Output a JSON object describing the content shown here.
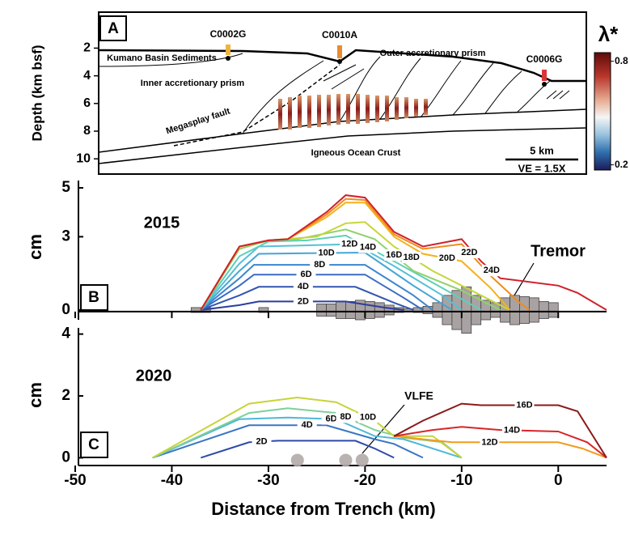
{
  "chart_data": [
    {
      "type": "section",
      "panel": "A",
      "ylabel": "Depth (km bsf)",
      "ylim": [
        11.1,
        -0.6
      ],
      "yticks": [
        2,
        4,
        6,
        8,
        10
      ],
      "labels": [
        "Kumano Basin Sediments",
        "Inner accretionary prism",
        "Outer accretionary prism",
        "Megasplay fault",
        "Igneous Ocean Crust"
      ],
      "sites": [
        {
          "name": "C0002G",
          "color": "#f0b43c"
        },
        {
          "name": "C0010A",
          "color": "#e98b2f"
        },
        {
          "name": "C0006G",
          "color": "#d9363a"
        }
      ],
      "scale_bar": "5 km",
      "ve": "VE = 1.5X",
      "colorbar": {
        "title": "λ*",
        "clim": [
          0.17,
          0.85
        ],
        "ticks": [
          0.2,
          0.8
        ]
      }
    },
    {
      "type": "line",
      "panel": "B",
      "label": "2015",
      "ylabel": "cm",
      "xlim": [
        -50,
        5
      ],
      "xticks": [
        -50,
        -40,
        -30,
        -20,
        -10,
        0
      ],
      "ylim": [
        -0.4,
        5.3
      ],
      "yticks": [
        0,
        3,
        5
      ],
      "series": [
        {
          "name": "2D",
          "color": "#2c3e9e",
          "x": [
            -37,
            -33,
            -31,
            -22,
            -18,
            -16
          ],
          "values": [
            0,
            0.2,
            0.35,
            0.35,
            0.1,
            0
          ]
        },
        {
          "name": "4D",
          "color": "#3355b0",
          "x": [
            -37,
            -33,
            -31,
            -21,
            -17,
            -15
          ],
          "values": [
            0,
            0.6,
            0.95,
            0.95,
            0.3,
            0
          ]
        },
        {
          "name": "6D",
          "color": "#3a6cc2",
          "x": [
            -37,
            -33,
            -31.5,
            -20,
            -16,
            -14
          ],
          "values": [
            0,
            1.0,
            1.45,
            1.45,
            0.5,
            0
          ]
        },
        {
          "name": "8D",
          "color": "#3e86cf",
          "x": [
            -37,
            -33,
            -31.5,
            -20,
            -15,
            -13
          ],
          "values": [
            0,
            1.3,
            1.85,
            1.85,
            0.6,
            0
          ]
        },
        {
          "name": "10D",
          "color": "#44a5d6",
          "x": [
            -37,
            -33,
            -31,
            -20,
            -15,
            -11
          ],
          "values": [
            0,
            1.6,
            2.3,
            2.35,
            1.0,
            0
          ]
        },
        {
          "name": "12D",
          "color": "#56c0d6",
          "x": [
            -37,
            -33,
            -31,
            -21,
            -17,
            -12,
            -10
          ],
          "values": [
            0,
            1.9,
            2.6,
            2.7,
            1.8,
            0.6,
            0
          ]
        },
        {
          "name": "14D",
          "color": "#5ecfb9",
          "x": [
            -37,
            -33,
            -30,
            -26,
            -22,
            -17,
            -12,
            -8
          ],
          "values": [
            0,
            2.2,
            2.8,
            2.85,
            3.05,
            2.0,
            0.9,
            0
          ]
        },
        {
          "name": "16D",
          "color": "#8fd26e",
          "x": [
            -37,
            -33,
            -30,
            -27,
            -22,
            -19,
            -15,
            -10,
            -6
          ],
          "values": [
            0,
            2.5,
            2.85,
            2.9,
            3.3,
            2.9,
            1.6,
            0.8,
            0
          ]
        },
        {
          "name": "18D",
          "color": "#c5d63a",
          "x": [
            -37,
            -33,
            -30,
            -25,
            -22,
            -20,
            -17,
            -13,
            -8,
            -5
          ],
          "values": [
            0,
            2.6,
            2.85,
            3.0,
            3.55,
            3.6,
            2.6,
            1.6,
            0.6,
            0
          ]
        },
        {
          "name": "20D",
          "color": "#f3b21e",
          "x": [
            -37,
            -33,
            -30,
            -28,
            -24,
            -22,
            -20,
            -17,
            -14,
            -10,
            -7,
            -5
          ],
          "values": [
            0,
            2.6,
            2.85,
            2.9,
            3.8,
            4.4,
            4.4,
            3.0,
            2.3,
            2.0,
            0.9,
            0
          ]
        },
        {
          "name": "22D",
          "color": "#f08b1a",
          "x": [
            -37,
            -33,
            -30,
            -28,
            -24,
            -22,
            -20,
            -17,
            -14,
            -10,
            -7,
            -4,
            -3
          ],
          "values": [
            0,
            2.6,
            2.85,
            2.9,
            3.9,
            4.55,
            4.5,
            3.1,
            2.5,
            2.7,
            1.4,
            0.3,
            0
          ]
        },
        {
          "name": "24D",
          "color": "#d0212a",
          "x": [
            -37,
            -33,
            -30,
            -28,
            -24,
            -22,
            -20,
            -17,
            -14,
            -10,
            -8,
            -6,
            0,
            2,
            5
          ],
          "values": [
            0,
            2.6,
            2.85,
            2.9,
            4.0,
            4.7,
            4.6,
            3.2,
            2.6,
            2.9,
            2.0,
            1.3,
            1.0,
            0.7,
            0
          ]
        }
      ],
      "histogram": {
        "name": "Tremor",
        "color": "#a9a2a2",
        "bins": [
          -38,
          -37,
          -36,
          -35,
          -34,
          -33,
          -32,
          -31,
          -30,
          -29,
          -28,
          -27,
          -26,
          -25,
          -24,
          -23,
          -22,
          -21,
          -20,
          -19,
          -18,
          -17,
          -16,
          -15,
          -14,
          -13,
          -12,
          -11,
          -10,
          -9,
          -8,
          -7,
          -6,
          -5,
          -4,
          -3,
          -2,
          -1,
          0
        ],
        "values": [
          0.1,
          0.1,
          0,
          0,
          0,
          0,
          0,
          0.1,
          0,
          0,
          0,
          0,
          0,
          0.25,
          0.25,
          0.35,
          0.35,
          0.4,
          0.35,
          0.3,
          0.2,
          0.1,
          0.05,
          0.1,
          0.15,
          0.3,
          0.6,
          0.8,
          0.95,
          0.6,
          0.4,
          0.3,
          0.5,
          0.6,
          0.55,
          0.5,
          0.35,
          0.3
        ]
      }
    },
    {
      "type": "line",
      "panel": "C",
      "label": "2020",
      "ylabel": "cm",
      "xlabel": "Distance from Trench (km)",
      "xlim": [
        -50,
        5
      ],
      "xticks": [
        -50,
        -40,
        -30,
        -20,
        -10,
        0
      ],
      "ylim": [
        -0.25,
        4.2
      ],
      "yticks": [
        0,
        2,
        4
      ],
      "series": [
        {
          "name": "2D",
          "color": "#2d4aa6",
          "x": [
            -37,
            -32,
            -29,
            -21,
            -19,
            -17
          ],
          "values": [
            0,
            0.5,
            0.55,
            0.55,
            0.3,
            0
          ]
        },
        {
          "name": "4D",
          "color": "#3a76c4",
          "x": [
            -42,
            -32,
            -24,
            -19,
            -17,
            -14
          ],
          "values": [
            0,
            1.05,
            1.05,
            0.6,
            0.45,
            0
          ]
        },
        {
          "name": "6D",
          "color": "#4fb7d8",
          "x": [
            -42,
            -33,
            -28,
            -23,
            -19,
            -16,
            -10
          ],
          "values": [
            0,
            1.25,
            1.3,
            1.25,
            0.7,
            0.6,
            0
          ]
        },
        {
          "name": "8D",
          "color": "#7fcf9a",
          "x": [
            -42,
            -32,
            -28,
            -23,
            -19,
            -16,
            -12,
            -10
          ],
          "values": [
            0,
            1.45,
            1.6,
            1.45,
            0.9,
            0.65,
            0.5,
            0
          ]
        },
        {
          "name": "10D",
          "color": "#c7d43b",
          "x": [
            -42,
            -32,
            -27,
            -23,
            -19,
            -17,
            -13,
            -10
          ],
          "values": [
            0,
            1.75,
            1.95,
            1.8,
            1.2,
            0.7,
            0.7,
            0
          ]
        },
        {
          "name": "12D",
          "color": "#f29b1c",
          "x": [
            -17,
            -14,
            -11,
            -8,
            -5,
            0,
            2.5,
            5
          ],
          "values": [
            0.7,
            0.6,
            0.5,
            0.5,
            0.5,
            0.5,
            0.3,
            0
          ]
        },
        {
          "name": "14D",
          "color": "#d8262a",
          "x": [
            -17,
            -13,
            -10,
            -6,
            0,
            3,
            5
          ],
          "values": [
            0.7,
            0.9,
            1.0,
            0.9,
            0.85,
            0.5,
            0
          ]
        },
        {
          "name": "16D",
          "color": "#8b1a1a",
          "x": [
            -17,
            -14,
            -10,
            -8,
            0,
            2,
            5
          ],
          "values": [
            0.7,
            1.2,
            1.75,
            1.7,
            1.7,
            1.5,
            0
          ]
        }
      ],
      "points": {
        "name": "VLFE",
        "color": "#b3a9a9",
        "x": [
          -27,
          -22,
          -20.3
        ],
        "values": [
          0,
          0,
          0
        ]
      }
    }
  ]
}
